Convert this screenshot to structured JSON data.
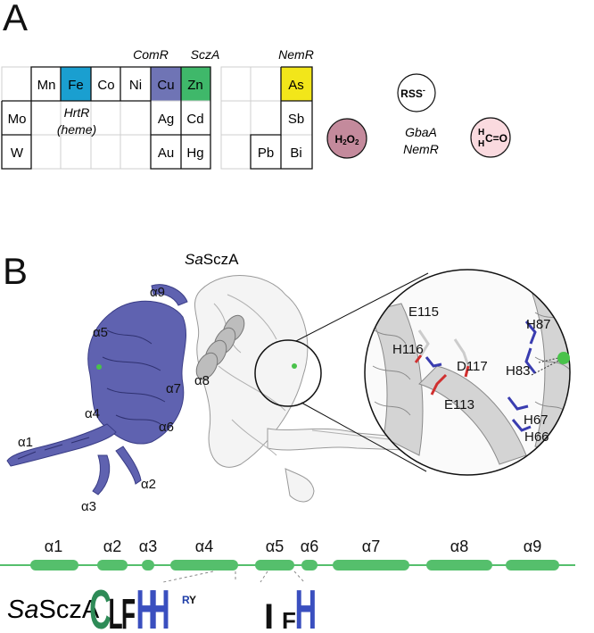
{
  "panel_a": {
    "letter": "A",
    "labels": {
      "comr": "ComR",
      "scza": "SczA",
      "nemr_top": "NemR",
      "hrtr_1": "HrtR",
      "hrtr_2": "(heme)",
      "gbaa": "GbaA",
      "nemr_bottom": "NemR"
    },
    "table_main": {
      "row1": [
        "",
        "Mn",
        "Fe",
        "Co",
        "Ni",
        "Cu",
        "Zn"
      ],
      "row2": [
        "Mo",
        "",
        "",
        "",
        "",
        "Ag",
        "Cd"
      ],
      "row3": [
        "W",
        "",
        "",
        "",
        "",
        "Au",
        "Hg"
      ]
    },
    "table_right": {
      "row1": [
        "",
        "",
        "As"
      ],
      "row2": [
        "",
        "",
        "Sb"
      ],
      "row3": [
        "",
        "Pb",
        "Bi"
      ]
    },
    "molecules": {
      "rss": "RSS",
      "rss_sup": "-",
      "h2o2_h": "H",
      "h2o2_2a": "2",
      "h2o2_o": "O",
      "h2o2_2b": "2",
      "form_h1": "H",
      "form_h2": "H",
      "form_co": "C=O"
    },
    "colors": {
      "fe": "#1a9fd0",
      "cu": "#6f74b5",
      "zn": "#3fb86a",
      "as": "#f2e61a",
      "h2o2": "#c48a9c",
      "formaldehyde": "#fadadf"
    }
  },
  "panel_b": {
    "letter": "B",
    "title_italic": "Sa",
    "title_rest": "SczA",
    "helix_labels": [
      "α9",
      "α5",
      "α8",
      "α7",
      "α4",
      "α6",
      "α1",
      "α2",
      "α3"
    ],
    "residues": [
      "E115",
      "H116",
      "D117",
      "H87",
      "H83",
      "E113",
      "H67",
      "H66"
    ],
    "colors": {
      "protein": "#5f62b0",
      "zinc": "#49c24a",
      "white_protein_edge": "#9a9a9a"
    }
  },
  "topology": {
    "helices": [
      "α1",
      "α2",
      "α3",
      "α4",
      "α5",
      "α6",
      "α7",
      "α8",
      "α9"
    ],
    "color": "#55bf6c"
  },
  "logo": {
    "label_italic": "Sa",
    "label_rest": "SczA",
    "motif1": [
      "C",
      "R",
      "Y",
      "L",
      "F",
      "H",
      "H"
    ],
    "motif2": [
      "I",
      "F",
      "H"
    ]
  }
}
